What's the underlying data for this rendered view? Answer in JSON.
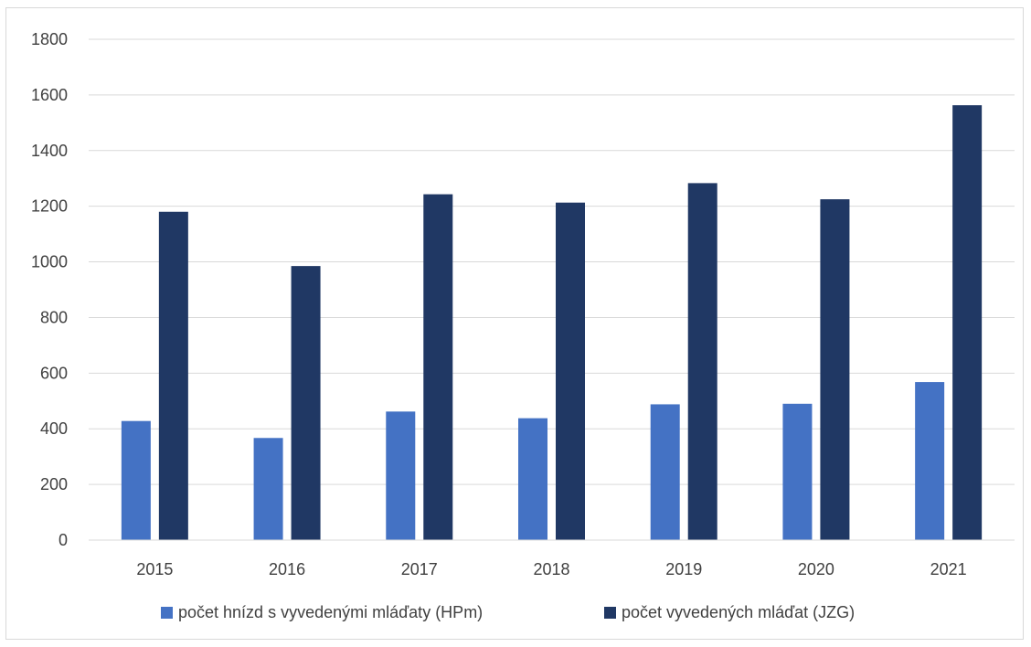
{
  "chart_data": {
    "type": "bar",
    "title": "",
    "xlabel": "",
    "ylabel": "",
    "categories": [
      "2015",
      "2016",
      "2017",
      "2018",
      "2019",
      "2020",
      "2021"
    ],
    "series": [
      {
        "name": "počet hnízd s vyvedenými mláďaty (HPm)",
        "color": "#4472C4",
        "values": [
          428,
          367,
          462,
          438,
          488,
          490,
          568
        ]
      },
      {
        "name": "počet vyvedených mláďat (JZG)",
        "color": "#203864",
        "values": [
          1180,
          985,
          1243,
          1213,
          1283,
          1225,
          1563
        ]
      }
    ],
    "ylim": [
      0,
      1800
    ],
    "yticks": [
      "0",
      "200",
      "400",
      "600",
      "800",
      "1000",
      "1200",
      "1400",
      "1600",
      "1800"
    ],
    "grid": true,
    "legend_position": "bottom"
  }
}
